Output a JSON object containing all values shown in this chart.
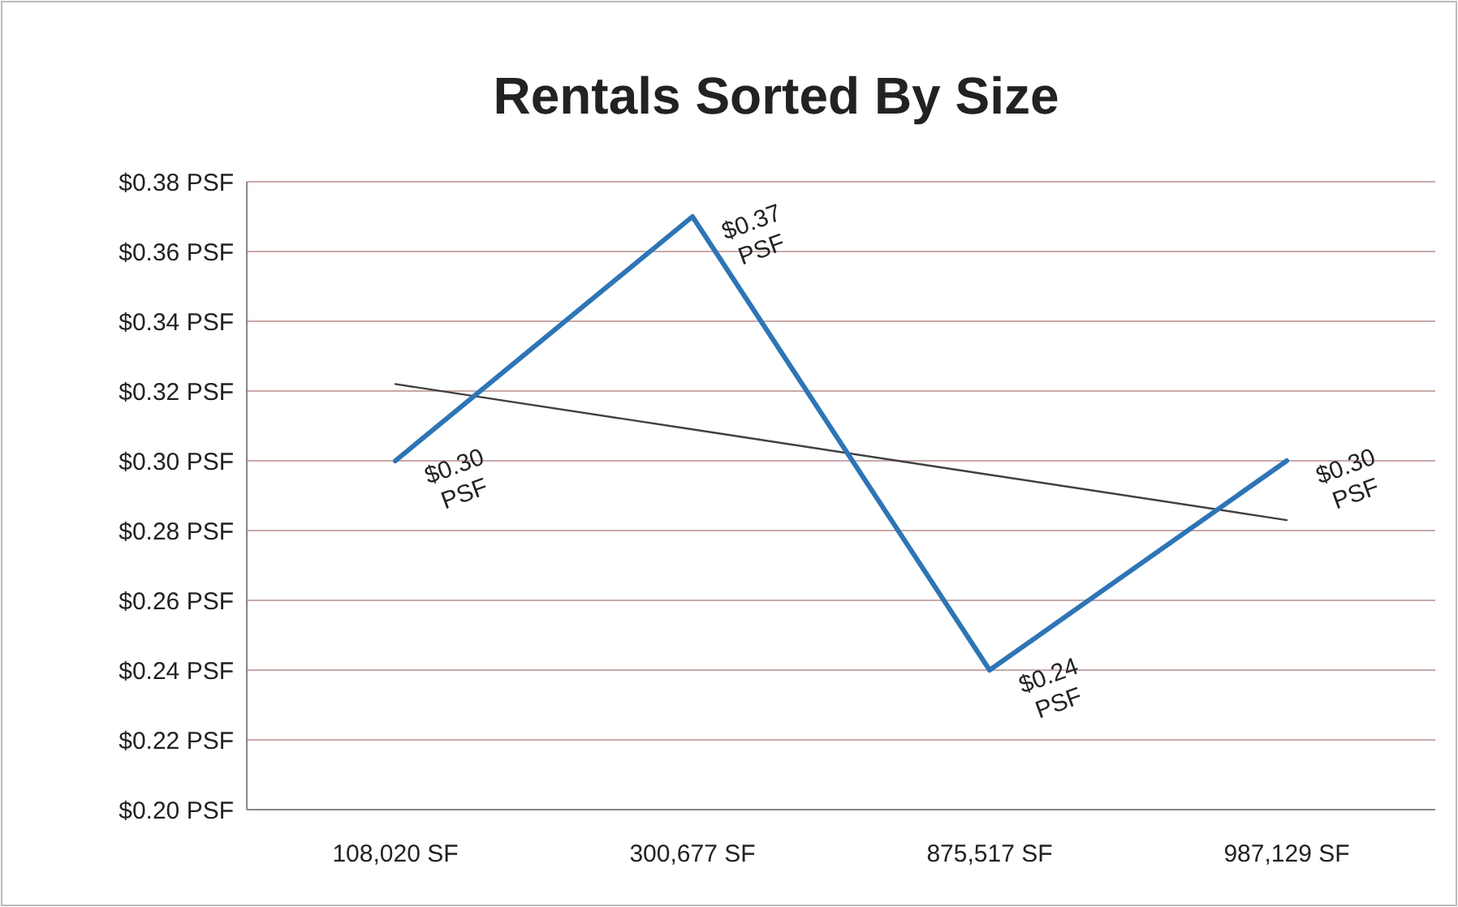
{
  "chart_data": {
    "type": "line",
    "title": "Rentals Sorted By Size",
    "categories": [
      "108,020 SF",
      "300,677 SF",
      "875,517 SF",
      "987,129 SF"
    ],
    "series": [
      {
        "color": "#2e75b6",
        "values": [
          0.3,
          0.37,
          0.24,
          0.3
        ],
        "value_labels": [
          "$0.30 PSF",
          "$0.37 PSF",
          "$0.24 PSF",
          "$0.30 PSF"
        ]
      },
      {
        "color": "#404040",
        "values": [
          0.322,
          0.309,
          0.296,
          0.283
        ]
      }
    ],
    "ylim": [
      0.2,
      0.38
    ],
    "yticks": [
      {
        "value": 0.2,
        "label": "$0.20 PSF"
      },
      {
        "value": 0.22,
        "label": "$0.22 PSF"
      },
      {
        "value": 0.24,
        "label": "$0.24 PSF"
      },
      {
        "value": 0.26,
        "label": "$0.26 PSF"
      },
      {
        "value": 0.28,
        "label": "$0.28 PSF"
      },
      {
        "value": 0.3,
        "label": "$0.30 PSF"
      },
      {
        "value": 0.32,
        "label": "$0.32 PSF"
      },
      {
        "value": 0.34,
        "label": "$0.34 PSF"
      },
      {
        "value": 0.36,
        "label": "$0.36 PSF"
      },
      {
        "value": 0.38,
        "label": "$0.38 PSF"
      }
    ],
    "grid": "y",
    "marker": "none",
    "line_style": "solid"
  }
}
